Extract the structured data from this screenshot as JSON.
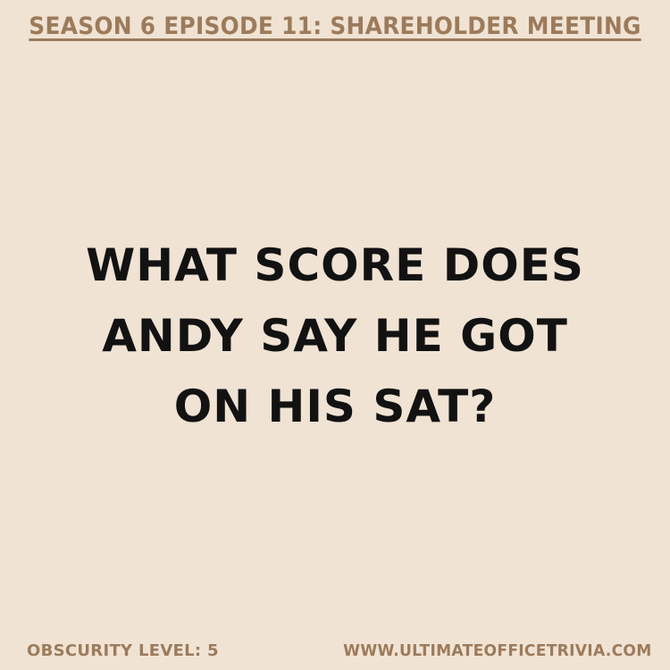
{
  "header": {
    "title": "SEASON 6 EPISODE 11: SHAREHOLDER MEETING"
  },
  "question": {
    "lines": [
      "WHAT SCORE DOES",
      "ANDY SAY HE GOT",
      "ON HIS SAT?"
    ]
  },
  "footer": {
    "obscurity": "OBSCURITY LEVEL: 5",
    "website": "WWW.ULTIMATEOFFICETRIVIA.COM"
  },
  "colors": {
    "background": "#f0e3d4",
    "accent": "#9c7b5b",
    "text": "#121212"
  }
}
